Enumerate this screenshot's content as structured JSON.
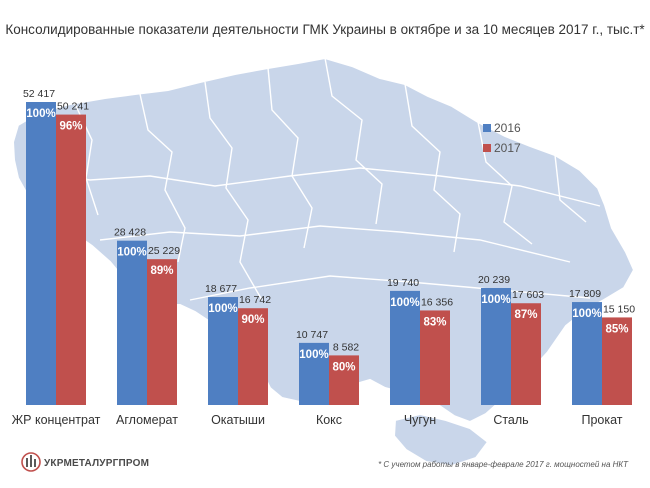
{
  "title": "Консолидированные показатели деятельности ГМК Украины в октябре и за 10 месяцев 2017 г., тыс.т*",
  "footnote": "* С учетом работы в январе-феврале  2017  г. мощностей  на НКТ",
  "logo": {
    "name": "УКРМЕТАЛУРГПРОМ",
    "icon": "ukrmetalurgprom-logo-icon"
  },
  "colors": {
    "series_2016": "#4f7fc2",
    "series_2017": "#c0504d",
    "map": "#c9d6ea",
    "map_border": "#ffffff"
  },
  "chart_data": {
    "type": "bar",
    "categories": [
      "ЖР концентрат",
      "Агломерат",
      "Окатыши",
      "Кокс",
      "Чугун",
      "Сталь",
      "Прокат"
    ],
    "series": [
      {
        "name": "2016",
        "values": [
          52417,
          28428,
          18677,
          10747,
          19740,
          20239,
          17809
        ],
        "value_labels": [
          "52 417",
          "28 428",
          "18 677",
          "10 747",
          "19 740",
          "20 239",
          "17 809"
        ],
        "pct_labels": [
          "100%",
          "100%",
          "100%",
          "100%",
          "100%",
          "100%",
          "100%"
        ]
      },
      {
        "name": "2017",
        "values": [
          50241,
          25229,
          16742,
          8582,
          16356,
          17603,
          15150
        ],
        "value_labels": [
          "50 241",
          "25 229",
          "16 742",
          "8 582",
          "16 356",
          "17 603",
          "15 150"
        ],
        "pct_labels": [
          "96%",
          "89%",
          "90%",
          "80%",
          "83%",
          "87%",
          "85%"
        ]
      }
    ],
    "legend": "right",
    "grid": false
  }
}
